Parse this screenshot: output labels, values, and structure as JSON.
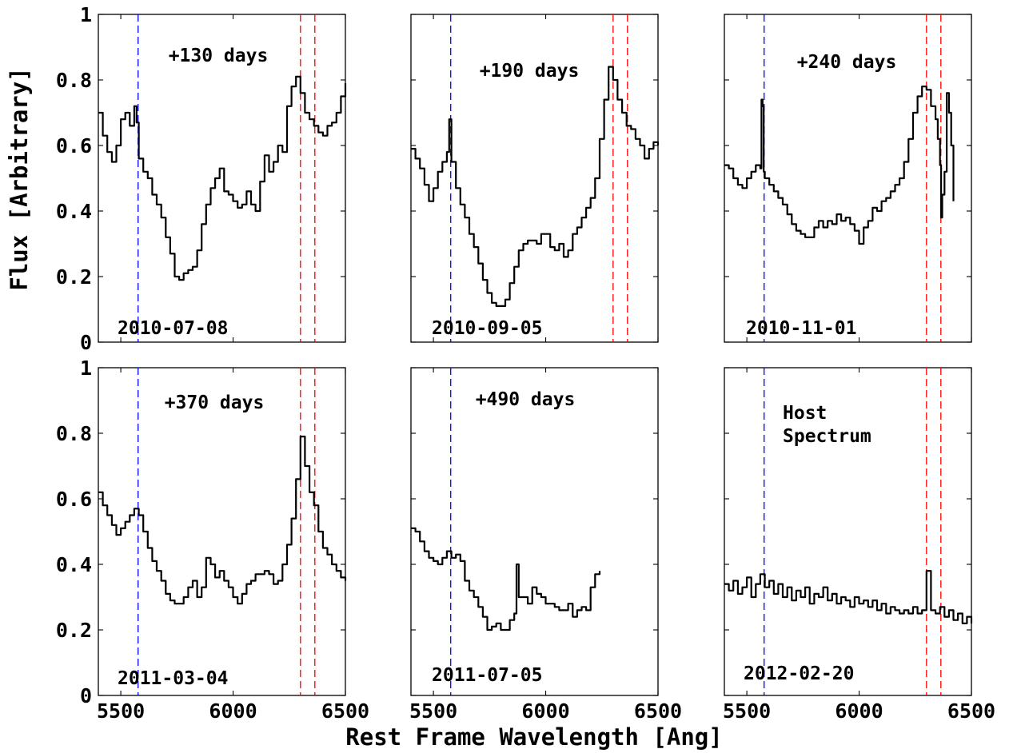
{
  "figure": {
    "ylabel": "Flux [Arbitrary]",
    "xlabel": "Rest Frame Wavelength [Ang]"
  },
  "colors": {
    "blue_line": "#0000ff",
    "red_line": "#ff0000",
    "spectrum": "#000000"
  },
  "chart_data": [
    {
      "type": "line",
      "phase_label": "+130 days",
      "date_label": "2010-07-08",
      "xlim": [
        5400,
        6500
      ],
      "ylim": [
        0,
        1
      ],
      "xticks": [
        5500,
        6000,
        6500
      ],
      "yticks": [
        0,
        0.2,
        0.4,
        0.6,
        0.8,
        1
      ],
      "show_xtick_labels": false,
      "show_ytick_labels": true,
      "vlines_blue": [
        5577
      ],
      "vlines_red": [
        6300,
        6364
      ],
      "x": [
        5400,
        5420,
        5440,
        5460,
        5480,
        5500,
        5520,
        5540,
        5560,
        5570,
        5580,
        5600,
        5620,
        5640,
        5660,
        5680,
        5700,
        5720,
        5740,
        5760,
        5780,
        5800,
        5820,
        5840,
        5860,
        5880,
        5900,
        5920,
        5940,
        5960,
        5980,
        6000,
        6020,
        6040,
        6060,
        6080,
        6100,
        6120,
        6140,
        6160,
        6180,
        6200,
        6220,
        6240,
        6260,
        6280,
        6300,
        6320,
        6340,
        6360,
        6380,
        6400,
        6420,
        6440,
        6460,
        6480,
        6500
      ],
      "y": [
        0.7,
        0.63,
        0.58,
        0.55,
        0.6,
        0.68,
        0.7,
        0.66,
        0.72,
        0.67,
        0.56,
        0.52,
        0.5,
        0.45,
        0.42,
        0.38,
        0.32,
        0.27,
        0.2,
        0.19,
        0.21,
        0.22,
        0.23,
        0.28,
        0.36,
        0.42,
        0.47,
        0.5,
        0.53,
        0.46,
        0.45,
        0.43,
        0.41,
        0.42,
        0.46,
        0.42,
        0.4,
        0.49,
        0.57,
        0.52,
        0.55,
        0.6,
        0.58,
        0.72,
        0.78,
        0.81,
        0.76,
        0.7,
        0.68,
        0.66,
        0.64,
        0.63,
        0.66,
        0.67,
        0.7,
        0.75,
        0.79
      ]
    },
    {
      "type": "line",
      "phase_label": "+190 days",
      "date_label": "2010-09-05",
      "xlim": [
        5400,
        6500
      ],
      "ylim": [
        0,
        1
      ],
      "xticks": [
        5500,
        6000,
        6500
      ],
      "yticks": [
        0,
        0.2,
        0.4,
        0.6,
        0.8,
        1
      ],
      "show_xtick_labels": false,
      "show_ytick_labels": false,
      "vlines_blue": [
        5577
      ],
      "vlines_red": [
        6300,
        6364
      ],
      "x": [
        5400,
        5420,
        5440,
        5460,
        5480,
        5500,
        5520,
        5540,
        5560,
        5570,
        5580,
        5600,
        5620,
        5640,
        5660,
        5680,
        5700,
        5720,
        5740,
        5760,
        5780,
        5800,
        5820,
        5840,
        5860,
        5880,
        5900,
        5920,
        5940,
        5960,
        5980,
        6000,
        6020,
        6040,
        6060,
        6080,
        6100,
        6120,
        6140,
        6160,
        6180,
        6200,
        6220,
        6240,
        6260,
        6280,
        6300,
        6320,
        6340,
        6360,
        6380,
        6400,
        6420,
        6440,
        6460,
        6480,
        6500
      ],
      "y": [
        0.59,
        0.56,
        0.53,
        0.48,
        0.43,
        0.47,
        0.52,
        0.55,
        0.58,
        0.68,
        0.55,
        0.47,
        0.42,
        0.38,
        0.33,
        0.29,
        0.24,
        0.19,
        0.15,
        0.12,
        0.11,
        0.11,
        0.13,
        0.18,
        0.23,
        0.28,
        0.3,
        0.31,
        0.31,
        0.3,
        0.33,
        0.33,
        0.29,
        0.28,
        0.3,
        0.26,
        0.28,
        0.33,
        0.35,
        0.38,
        0.41,
        0.44,
        0.5,
        0.62,
        0.74,
        0.84,
        0.8,
        0.74,
        0.7,
        0.66,
        0.65,
        0.62,
        0.6,
        0.56,
        0.59,
        0.61,
        0.6
      ]
    },
    {
      "type": "line",
      "phase_label": "+240 days",
      "date_label": "2010-11-01",
      "xlim": [
        5400,
        6500
      ],
      "ylim": [
        0,
        1
      ],
      "xticks": [
        5500,
        6000,
        6500
      ],
      "yticks": [
        0,
        0.2,
        0.4,
        0.6,
        0.8,
        1
      ],
      "show_xtick_labels": false,
      "show_ytick_labels": false,
      "vlines_blue": [
        5577
      ],
      "vlines_red": [
        6300,
        6364
      ],
      "x": [
        5400,
        5420,
        5440,
        5460,
        5480,
        5500,
        5520,
        5540,
        5560,
        5565,
        5570,
        5575,
        5580,
        5600,
        5620,
        5640,
        5660,
        5680,
        5700,
        5720,
        5740,
        5760,
        5780,
        5800,
        5820,
        5840,
        5860,
        5880,
        5900,
        5920,
        5940,
        5960,
        5980,
        6000,
        6020,
        6040,
        6060,
        6080,
        6100,
        6120,
        6140,
        6160,
        6180,
        6200,
        6220,
        6240,
        6260,
        6280,
        6300,
        6320,
        6340,
        6350,
        6360,
        6365,
        6370,
        6380,
        6390,
        6400,
        6410,
        6420
      ],
      "y": [
        0.54,
        0.53,
        0.5,
        0.48,
        0.47,
        0.5,
        0.52,
        0.54,
        0.53,
        0.74,
        0.72,
        0.52,
        0.5,
        0.48,
        0.46,
        0.44,
        0.42,
        0.39,
        0.36,
        0.34,
        0.33,
        0.32,
        0.32,
        0.35,
        0.37,
        0.35,
        0.37,
        0.36,
        0.39,
        0.37,
        0.38,
        0.36,
        0.34,
        0.3,
        0.35,
        0.37,
        0.41,
        0.4,
        0.43,
        0.44,
        0.46,
        0.48,
        0.5,
        0.55,
        0.62,
        0.7,
        0.75,
        0.78,
        0.77,
        0.72,
        0.68,
        0.62,
        0.54,
        0.38,
        0.45,
        0.52,
        0.76,
        0.7,
        0.6,
        0.43
      ]
    },
    {
      "type": "line",
      "phase_label": "+370 days",
      "date_label": "2011-03-04",
      "xlim": [
        5400,
        6500
      ],
      "ylim": [
        0,
        1
      ],
      "xticks": [
        5500,
        6000,
        6500
      ],
      "yticks": [
        0,
        0.2,
        0.4,
        0.6,
        0.8,
        1
      ],
      "show_xtick_labels": true,
      "show_ytick_labels": true,
      "vlines_blue": [
        5577
      ],
      "vlines_red": [
        6300,
        6364
      ],
      "x": [
        5400,
        5420,
        5440,
        5460,
        5480,
        5500,
        5520,
        5540,
        5560,
        5580,
        5600,
        5620,
        5640,
        5660,
        5680,
        5700,
        5720,
        5740,
        5760,
        5780,
        5800,
        5820,
        5840,
        5860,
        5880,
        5900,
        5920,
        5940,
        5960,
        5980,
        6000,
        6020,
        6040,
        6060,
        6080,
        6100,
        6120,
        6140,
        6160,
        6180,
        6200,
        6220,
        6240,
        6260,
        6280,
        6300,
        6320,
        6340,
        6360,
        6380,
        6400,
        6420,
        6440,
        6460,
        6480,
        6500
      ],
      "y": [
        0.62,
        0.58,
        0.55,
        0.52,
        0.49,
        0.51,
        0.53,
        0.55,
        0.57,
        0.55,
        0.5,
        0.45,
        0.41,
        0.38,
        0.35,
        0.31,
        0.29,
        0.28,
        0.28,
        0.3,
        0.33,
        0.35,
        0.3,
        0.33,
        0.42,
        0.4,
        0.36,
        0.38,
        0.35,
        0.33,
        0.3,
        0.28,
        0.31,
        0.34,
        0.35,
        0.37,
        0.37,
        0.38,
        0.37,
        0.34,
        0.35,
        0.4,
        0.46,
        0.54,
        0.66,
        0.79,
        0.7,
        0.62,
        0.58,
        0.5,
        0.45,
        0.43,
        0.4,
        0.38,
        0.36,
        0.35
      ]
    },
    {
      "type": "line",
      "phase_label": "+490 days",
      "date_label": "2011-07-05",
      "xlim": [
        5400,
        6500
      ],
      "ylim": [
        0,
        1
      ],
      "xticks": [
        5500,
        6000,
        6500
      ],
      "yticks": [
        0,
        0.2,
        0.4,
        0.6,
        0.8,
        1
      ],
      "show_xtick_labels": true,
      "show_ytick_labels": false,
      "vlines_blue": [
        5577
      ],
      "vlines_red": [],
      "x": [
        5400,
        5420,
        5440,
        5460,
        5480,
        5500,
        5520,
        5540,
        5560,
        5580,
        5600,
        5620,
        5640,
        5660,
        5680,
        5700,
        5720,
        5740,
        5760,
        5780,
        5800,
        5820,
        5840,
        5860,
        5870,
        5880,
        5900,
        5920,
        5940,
        5960,
        5980,
        6000,
        6020,
        6040,
        6060,
        6080,
        6100,
        6120,
        6140,
        6160,
        6180,
        6200,
        6220,
        6240
      ],
      "y": [
        0.51,
        0.5,
        0.47,
        0.44,
        0.42,
        0.41,
        0.4,
        0.42,
        0.44,
        0.42,
        0.43,
        0.41,
        0.35,
        0.32,
        0.3,
        0.27,
        0.24,
        0.2,
        0.21,
        0.22,
        0.2,
        0.2,
        0.23,
        0.25,
        0.4,
        0.3,
        0.3,
        0.28,
        0.33,
        0.31,
        0.3,
        0.28,
        0.28,
        0.27,
        0.26,
        0.26,
        0.28,
        0.24,
        0.26,
        0.27,
        0.26,
        0.33,
        0.37,
        0.38
      ]
    },
    {
      "type": "line",
      "phase_label": "Host\nSpectrum",
      "date_label": "2012-02-20",
      "xlim": [
        5400,
        6500
      ],
      "ylim": [
        0,
        1
      ],
      "xticks": [
        5500,
        6000,
        6500
      ],
      "yticks": [
        0,
        0.2,
        0.4,
        0.6,
        0.8,
        1
      ],
      "show_xtick_labels": true,
      "show_ytick_labels": false,
      "vlines_blue": [
        5577
      ],
      "vlines_red": [
        6300,
        6364
      ],
      "x": [
        5400,
        5420,
        5440,
        5460,
        5480,
        5500,
        5520,
        5540,
        5560,
        5580,
        5600,
        5620,
        5640,
        5660,
        5680,
        5700,
        5720,
        5740,
        5760,
        5780,
        5800,
        5820,
        5840,
        5860,
        5880,
        5900,
        5920,
        5940,
        5960,
        5980,
        6000,
        6020,
        6040,
        6060,
        6080,
        6100,
        6120,
        6140,
        6160,
        6180,
        6200,
        6220,
        6240,
        6260,
        6280,
        6300,
        6320,
        6340,
        6360,
        6380,
        6400,
        6420,
        6440,
        6460,
        6480,
        6500
      ],
      "y": [
        0.34,
        0.32,
        0.35,
        0.31,
        0.33,
        0.36,
        0.3,
        0.34,
        0.37,
        0.33,
        0.35,
        0.31,
        0.34,
        0.3,
        0.33,
        0.29,
        0.32,
        0.3,
        0.33,
        0.28,
        0.31,
        0.3,
        0.33,
        0.29,
        0.31,
        0.28,
        0.3,
        0.29,
        0.27,
        0.3,
        0.28,
        0.29,
        0.27,
        0.29,
        0.26,
        0.28,
        0.25,
        0.27,
        0.26,
        0.25,
        0.26,
        0.25,
        0.27,
        0.25,
        0.26,
        0.38,
        0.26,
        0.25,
        0.27,
        0.24,
        0.26,
        0.23,
        0.25,
        0.22,
        0.24,
        0.22
      ]
    }
  ]
}
